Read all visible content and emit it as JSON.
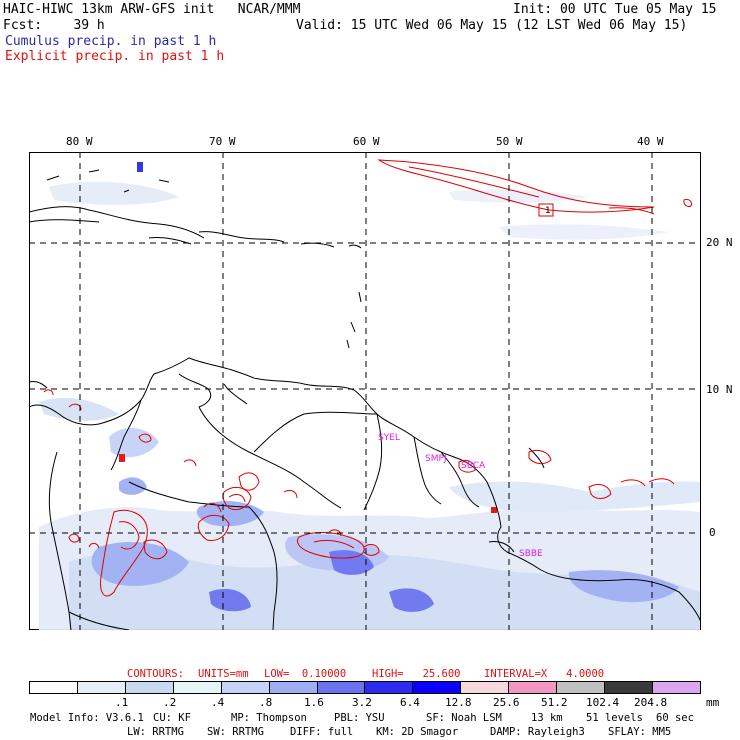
{
  "header": {
    "title": "HAIC-HIWC 13km ARW-GFS init   NCAR/MMM",
    "init": "Init: 00 UTC Tue 05 May 15",
    "fcst": "Fcst:    39 h",
    "valid": "Valid: 15 UTC Wed 06 May 15 (12 LST Wed 06 May 15)",
    "line_cumulus": "Cumulus precip. in past 1 h",
    "line_explicit": "Explicit precip. in past 1 h",
    "colors": {
      "cumulus": "#2a2aa8",
      "explicit": "#e01010"
    }
  },
  "map": {
    "lon_labels": [
      "80 W",
      "70 W",
      "60 W",
      "50 W",
      "40 W"
    ],
    "lat_labels": [
      "20 N",
      "10 N",
      "0"
    ],
    "region_labels": [
      "SYEL",
      "SMPJ",
      "SBCA",
      "SBBE"
    ],
    "box_label": "1",
    "colors": {
      "coast": "#000000",
      "grid": "#000000",
      "contour": "#e00000",
      "region_label": "#e020e0"
    }
  },
  "contours_line": {
    "contours": "CONTOURS:",
    "units": "UNITS=mm",
    "low": "LOW=  0.10000",
    "high": "HIGH=   25.600",
    "interval": "INTERVAL=X   4.0000"
  },
  "legend": {
    "unit": "mm",
    "colors": [
      "#ffffff",
      "#e6eef8",
      "#c8daf2",
      "#e4f6f6",
      "#c6d2f7",
      "#9faef3",
      "#6a74ef",
      "#2c2cf0",
      "#0a00ff",
      "#f7d8df",
      "#f396c2",
      "#c0c0c0",
      "#3a3a3a",
      "#d9a6ef"
    ],
    "labels": [
      ".1",
      ".2",
      ".4",
      ".8",
      "1.6",
      "3.2",
      "6.4",
      "12.8",
      "25.6",
      "51.2",
      "102.4",
      "204.8"
    ]
  },
  "footer": {
    "model_info": "Model Info: V3.6.1",
    "cu": "CU: KF",
    "mp": "MP: Thompson",
    "pbl": "PBL: YSU",
    "sf": "SF: Noah LSM",
    "res": "13 km",
    "levels": "51 levels",
    "dt": "60 sec",
    "lw": "LW: RRTMG",
    "sw": "SW: RRTMG",
    "diff": "DIFF: full",
    "km": "KM: 2D Smagor",
    "damp": "DAMP: Rayleigh3",
    "sflay": "SFLAY: MM5"
  }
}
